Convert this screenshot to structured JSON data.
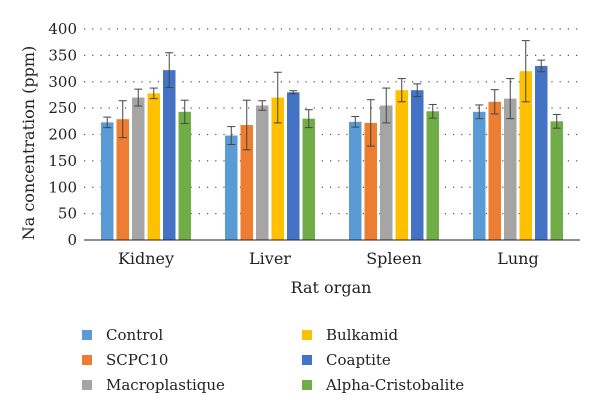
{
  "chart_data": {
    "type": "bar",
    "title": "",
    "xlabel": "Rat organ",
    "ylabel": "Na concentration (ppm)",
    "ylim": [
      0,
      400
    ],
    "yticks": [
      0,
      50,
      100,
      150,
      200,
      250,
      300,
      350,
      400
    ],
    "grid": "horizontal dotted",
    "legend_position": "bottom",
    "error_bars": true,
    "categories": [
      "Kidney",
      "Liver",
      "Spleen",
      "Lung"
    ],
    "series": [
      {
        "name": "Control",
        "color": "#5b9bd5",
        "values": [
          223,
          198,
          224,
          243
        ],
        "errors": [
          10,
          17,
          10,
          13
        ]
      },
      {
        "name": "SCPC10",
        "color": "#ed7d31",
        "values": [
          229,
          218,
          222,
          262
        ],
        "errors": [
          35,
          47,
          44,
          23
        ]
      },
      {
        "name": "Macroplastique",
        "color": "#a5a5a5",
        "values": [
          270,
          255,
          255,
          268
        ],
        "errors": [
          16,
          9,
          33,
          38
        ]
      },
      {
        "name": "Bulkamid",
        "color": "#ffc000",
        "values": [
          278,
          270,
          284,
          320
        ],
        "errors": [
          10,
          48,
          22,
          58
        ]
      },
      {
        "name": "Coaptite",
        "color": "#4472c4",
        "values": [
          322,
          280,
          284,
          330
        ],
        "errors": [
          33,
          3,
          12,
          11
        ]
      },
      {
        "name": "Alpha-Cristobalite",
        "color": "#70ad47",
        "values": [
          243,
          230,
          244,
          225
        ],
        "errors": [
          22,
          17,
          13,
          13
        ]
      }
    ]
  }
}
